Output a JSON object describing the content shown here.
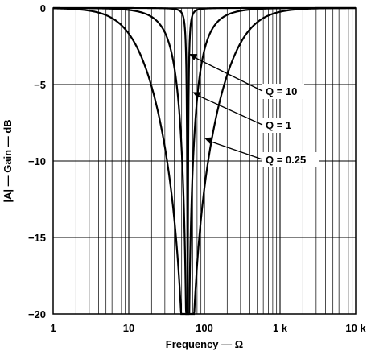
{
  "chart_data": {
    "type": "line",
    "xscale": "log",
    "xlim": [
      1,
      10000
    ],
    "ylim": [
      -20,
      0
    ],
    "grid": true,
    "xlabel": "Frequency — Ω",
    "ylabel": "|A| — Gain — dB",
    "xticks": [
      {
        "value": 1,
        "label": "1"
      },
      {
        "value": 10,
        "label": "10"
      },
      {
        "value": 100,
        "label": "100"
      },
      {
        "value": 1000,
        "label": "1 k"
      },
      {
        "value": 10000,
        "label": "10 k"
      }
    ],
    "yticks": [
      {
        "value": 0,
        "label": "0"
      },
      {
        "value": -5,
        "label": "−5"
      },
      {
        "value": -10,
        "label": "−10"
      },
      {
        "value": -15,
        "label": "−15"
      },
      {
        "value": -20,
        "label": "−20"
      }
    ],
    "notch_frequency": 60,
    "series": [
      {
        "name": "Q = 10",
        "q": 10,
        "label_value": {
          "x": 63,
          "y": -3
        }
      },
      {
        "name": "Q = 1",
        "q": 1,
        "label_value": {
          "x": 70,
          "y": -5.5
        }
      },
      {
        "name": "Q = 0.25",
        "q": 0.25,
        "label_value": {
          "x": 100,
          "y": -8.5
        }
      }
    ]
  }
}
